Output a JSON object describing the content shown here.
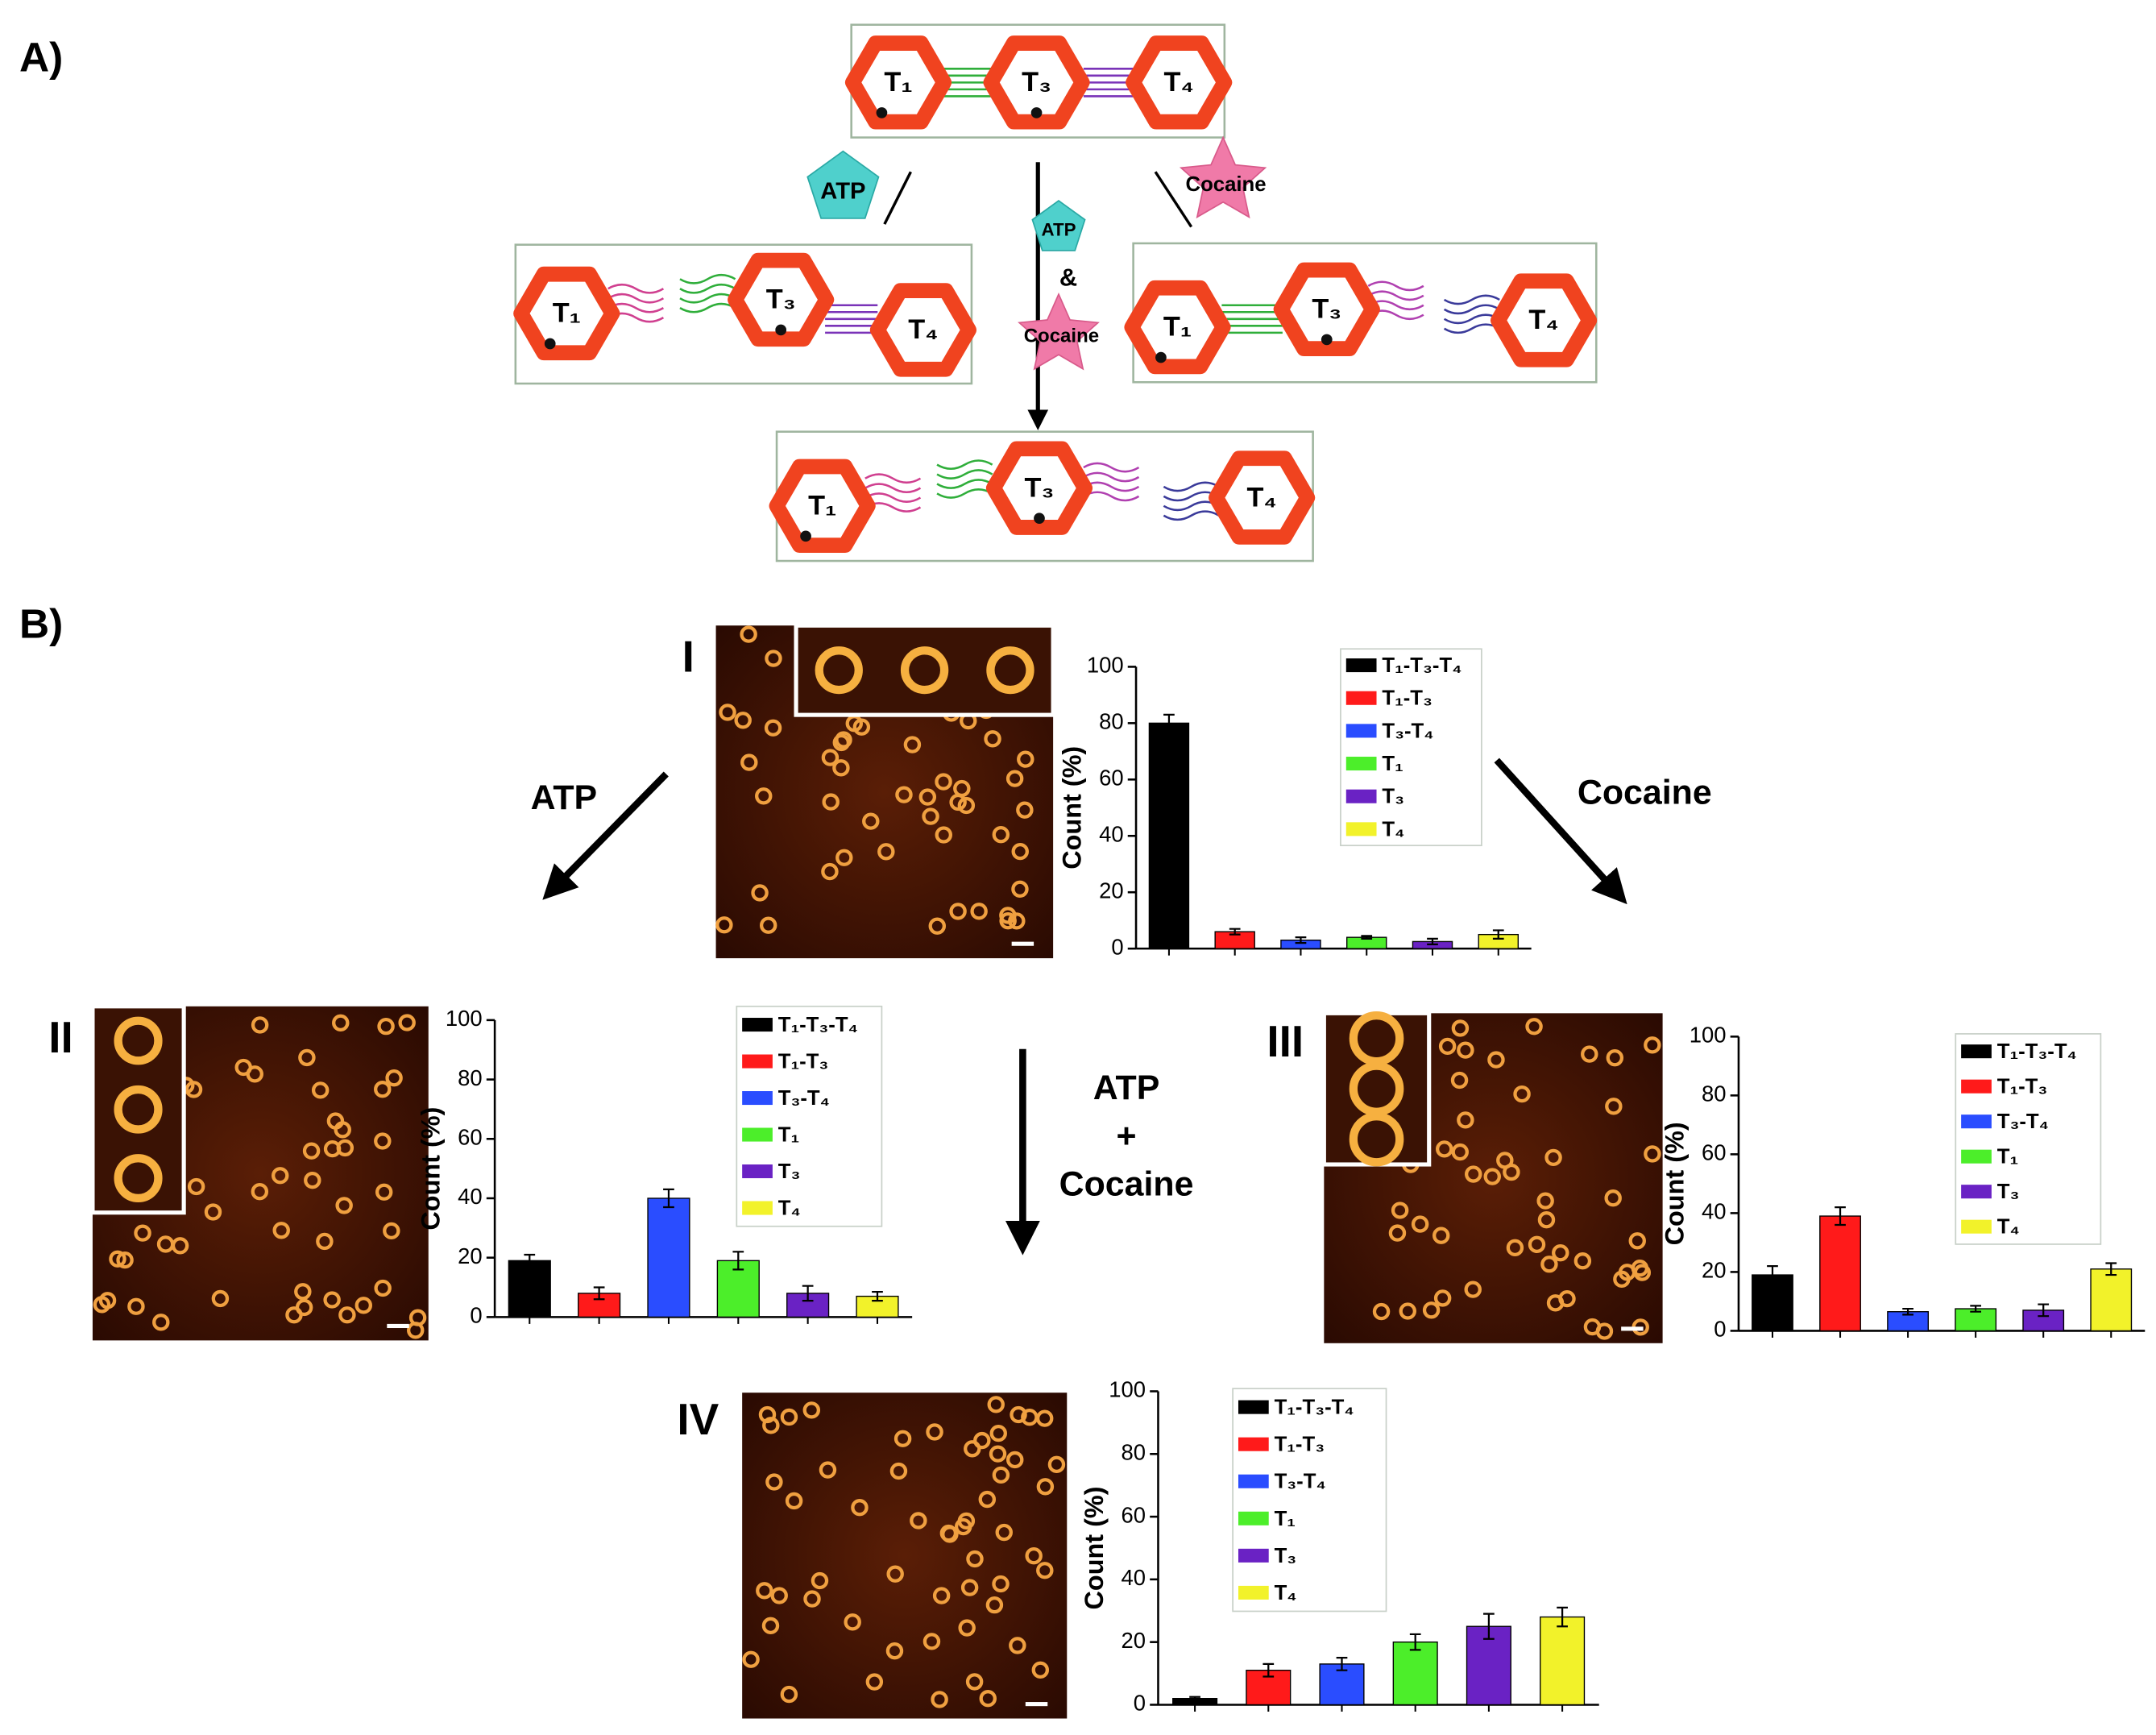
{
  "panel_a": {
    "label": "A)",
    "top": [
      "T₁",
      "T₃",
      "T₄"
    ],
    "left": [
      "T₁",
      "T₃",
      "T₄"
    ],
    "right": [
      "T₁",
      "T₃",
      "T₄"
    ],
    "bottom": [
      "T₁",
      "T₃",
      "T₄"
    ],
    "atp": "ATP",
    "cocaine": "Cocaine",
    "center_atp": "ATP",
    "center_and": "&",
    "center_cocaine": "Cocaine"
  },
  "panel_b": {
    "label": "B)",
    "arrow_left": "ATP",
    "arrow_right": "Cocaine",
    "arrow_center": [
      "ATP",
      "+",
      "Cocaine"
    ]
  },
  "chart_data": [
    {
      "type": "bar",
      "label": "I",
      "categories": [
        "T₁-T₃-T₄",
        "T₁-T₃",
        "T₃-T₄",
        "T₁",
        "T₃",
        "T₄"
      ],
      "colors": [
        "#000000",
        "#ff1a1a",
        "#2a4dff",
        "#4cee2a",
        "#6a22c4",
        "#f2f22a"
      ],
      "values": [
        80,
        6,
        3,
        4,
        2.5,
        5
      ],
      "errors": [
        3,
        1,
        1,
        0.5,
        1,
        1.5
      ],
      "ylabel": "Count  (%)",
      "ylim": [
        0,
        100
      ],
      "yticks": [
        0,
        20,
        40,
        60,
        80,
        100
      ]
    },
    {
      "type": "bar",
      "label": "II",
      "categories": [
        "T₁-T₃-T₄",
        "T₁-T₃",
        "T₃-T₄",
        "T₁",
        "T₃",
        "T₄"
      ],
      "colors": [
        "#000000",
        "#ff1a1a",
        "#2a4dff",
        "#4cee2a",
        "#6a22c4",
        "#f2f22a"
      ],
      "values": [
        19,
        8,
        40,
        19,
        8,
        7
      ],
      "errors": [
        2,
        2,
        3,
        3,
        2.5,
        1.5
      ],
      "ylabel": "Count  (%)",
      "ylim": [
        0,
        100
      ],
      "yticks": [
        0,
        20,
        40,
        60,
        80,
        100
      ]
    },
    {
      "type": "bar",
      "label": "III",
      "categories": [
        "T₁-T₃-T₄",
        "T₁-T₃",
        "T₃-T₄",
        "T₁",
        "T₃",
        "T₄"
      ],
      "colors": [
        "#000000",
        "#ff1a1a",
        "#2a4dff",
        "#4cee2a",
        "#6a22c4",
        "#f2f22a"
      ],
      "values": [
        19,
        39,
        6.5,
        7.5,
        7,
        21
      ],
      "errors": [
        3,
        3,
        1,
        1,
        2,
        2
      ],
      "ylabel": "Count  (%)",
      "ylim": [
        0,
        100
      ],
      "yticks": [
        0,
        20,
        40,
        60,
        80,
        100
      ]
    },
    {
      "type": "bar",
      "label": "IV",
      "categories": [
        "T₁-T₃-T₄",
        "T₁-T₃",
        "T₃-T₄",
        "T₁",
        "T₃",
        "T₄"
      ],
      "colors": [
        "#000000",
        "#ff1a1a",
        "#2a4dff",
        "#4cee2a",
        "#6a22c4",
        "#f2f22a"
      ],
      "values": [
        2,
        11,
        13,
        20,
        25,
        28
      ],
      "errors": [
        0.5,
        2,
        2,
        2.5,
        4,
        3
      ],
      "ylabel": "Count  (%)",
      "ylim": [
        0,
        100
      ],
      "yticks": [
        0,
        20,
        40,
        60,
        80,
        100
      ]
    }
  ]
}
